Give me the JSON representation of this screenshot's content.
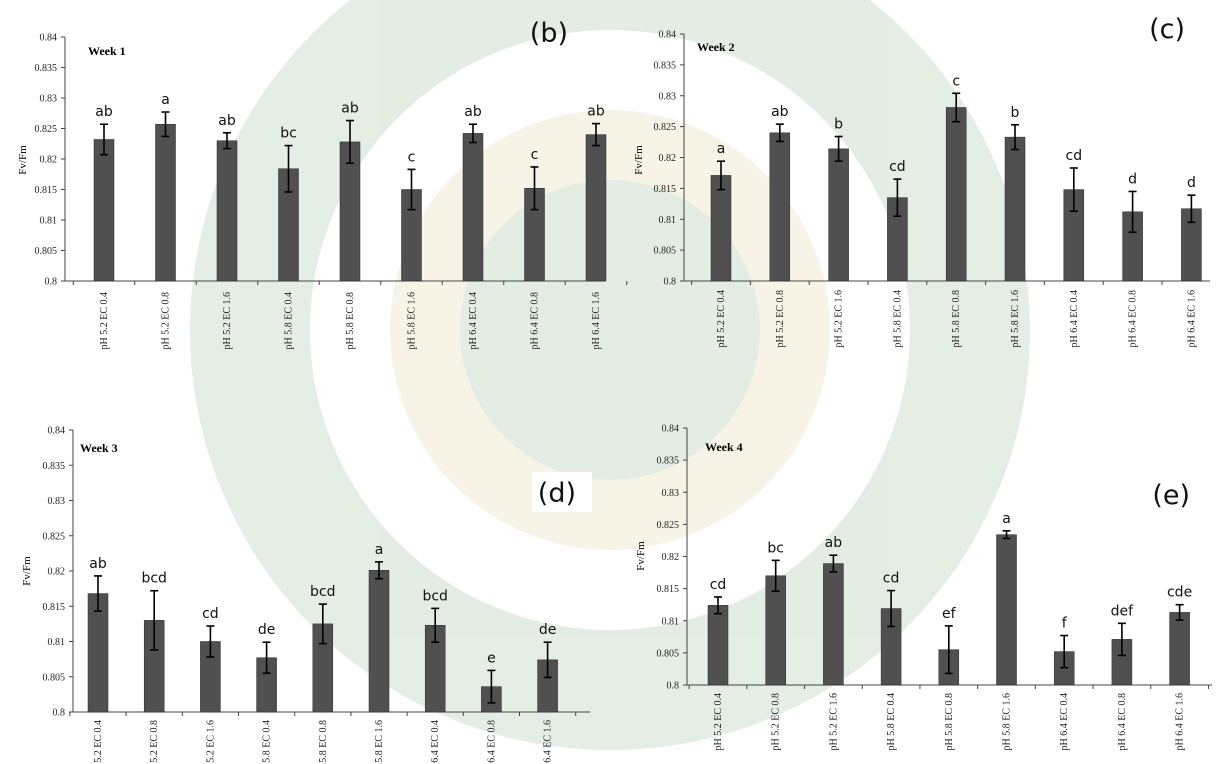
{
  "chart_data": [
    {
      "type": "bar",
      "panel_label": "(b)",
      "title": "Week 1",
      "ylabel": "Fv/Fm",
      "ylim": [
        0.8,
        0.84
      ],
      "ytick_step": 0.005,
      "yticks": [
        "0.8",
        "0.805",
        "0.81",
        "0.815",
        "0.82",
        "0.825",
        "0.83",
        "0.835",
        "0.84"
      ],
      "categories": [
        "pH 5.2 EC 0.4",
        "pH 5.2 EC 0.8",
        "pH 5.2 EC 1.6",
        "pH 5.8 EC 0.4",
        "pH 5.8 EC 0.8",
        "pH 5.8 EC 1.6",
        "pH 6.4 EC 0.4",
        "pH 6.4 EC 0.8",
        "pH 6.4 EC 1.6"
      ],
      "values": [
        0.8232,
        0.8257,
        0.823,
        0.8184,
        0.8228,
        0.815,
        0.8242,
        0.8152,
        0.824
      ],
      "errors": [
        0.0025,
        0.002,
        0.0013,
        0.0038,
        0.0035,
        0.0033,
        0.0015,
        0.0035,
        0.0018
      ],
      "letters": [
        "ab",
        "a",
        "ab",
        "bc",
        "ab",
        "c",
        "ab",
        "c",
        "ab"
      ]
    },
    {
      "type": "bar",
      "panel_label": "(c)",
      "title": "Week 2",
      "ylabel": "Fv/Fm",
      "ylim": [
        0.8,
        0.84
      ],
      "ytick_step": 0.005,
      "yticks": [
        "0.8",
        "0.805",
        "0.81",
        "0.815",
        "0.82",
        "0.825",
        "0.83",
        "0.835",
        "0.84"
      ],
      "categories": [
        "pH 5.2 EC 0.4",
        "pH 5.2 EC 0.8",
        "pH 5.2 EC 1.6",
        "pH 5.8 EC 0.4",
        "pH 5.8 EC 0.8",
        "pH 5.8 EC 1.6",
        "pH 6.4 EC 0.4",
        "pH 6.4 EC 0.8",
        "pH 6.4 EC 1.6"
      ],
      "values": [
        0.8171,
        0.824,
        0.8214,
        0.8135,
        0.8281,
        0.8233,
        0.8148,
        0.8112,
        0.8117
      ],
      "errors": [
        0.0023,
        0.0014,
        0.002,
        0.003,
        0.0023,
        0.002,
        0.0035,
        0.0033,
        0.0022
      ],
      "letters": [
        "a",
        "ab",
        "b",
        "cd",
        "c",
        "b",
        "cd",
        "d",
        "d"
      ]
    },
    {
      "type": "bar",
      "panel_label": "(d)",
      "title": "Week 3",
      "ylabel": "Fv/Fm",
      "ylim": [
        0.8,
        0.84
      ],
      "ytick_step": 0.005,
      "yticks": [
        "0.8",
        "0.805",
        "0.81",
        "0.815",
        "0.82",
        "0.825",
        "0.83",
        "0.835",
        "0.84"
      ],
      "categories": [
        "pH 5.2 EC 0.4",
        "pH 5.2 EC 0.8",
        "pH 5.2 EC 1.6",
        "pH 5.8 EC 0.4",
        "pH 5.8 EC 0.8",
        "pH 5.8 EC 1.6",
        "pH 6.4 EC 0.4",
        "pH 6.4 EC 0.8",
        "pH 6.4 EC 1.6"
      ],
      "values": [
        0.8168,
        0.813,
        0.81,
        0.8077,
        0.8125,
        0.8201,
        0.8123,
        0.8036,
        0.8074
      ],
      "errors": [
        0.0025,
        0.0042,
        0.0022,
        0.0022,
        0.0028,
        0.0012,
        0.0024,
        0.0023,
        0.0025
      ],
      "letters": [
        "ab",
        "bcd",
        "cd",
        "de",
        "bcd",
        "a",
        "bcd",
        "e",
        "de"
      ]
    },
    {
      "type": "bar",
      "panel_label": "(e)",
      "title": "Week 4",
      "ylabel": "Fv/Fm",
      "ylim": [
        0.8,
        0.84
      ],
      "ytick_step": 0.005,
      "yticks": [
        "0.8",
        "0.805",
        "0.81",
        "0.815",
        "0.82",
        "0.825",
        "0.83",
        "0.835",
        "0.84"
      ],
      "categories": [
        "pH 5.2 EC 0.4",
        "pH 5.2 EC 0.8",
        "pH 5.2 EC 1.6",
        "pH 5.8 EC 0.4",
        "pH 5.8 EC 0.8",
        "pH 5.8 EC 1.6",
        "pH 6.4 EC 0.4",
        "pH 6.4 EC 0.8",
        "pH 6.4 EC 1.6"
      ],
      "values": [
        0.8124,
        0.817,
        0.8189,
        0.8119,
        0.8055,
        0.8234,
        0.8052,
        0.8071,
        0.8113
      ],
      "errors": [
        0.0013,
        0.0024,
        0.0013,
        0.0028,
        0.0037,
        0.0006,
        0.0025,
        0.0025,
        0.0012
      ],
      "letters": [
        "cd",
        "bc",
        "ab",
        "cd",
        "ef",
        "a",
        "f",
        "def",
        "cde"
      ]
    }
  ]
}
